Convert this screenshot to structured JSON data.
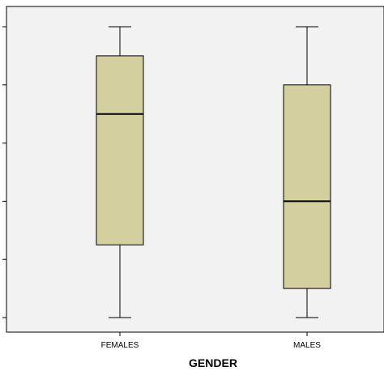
{
  "chart_data": {
    "type": "boxplot",
    "xlabel": "GENDER",
    "ylabel": "",
    "title": "",
    "categories": [
      "FEMALES",
      "MALES"
    ],
    "boxes": [
      {
        "min": 0,
        "q1": 25,
        "median": 70,
        "q3": 90,
        "max": 100
      },
      {
        "min": 0,
        "q1": 10,
        "median": 40,
        "q3": 80,
        "max": 100
      }
    ],
    "ylim": [
      0,
      100
    ],
    "y_tick_count": 6,
    "grid": false,
    "colors": {
      "box_fill": "#d4cf9f",
      "plot_background": "#f2f2f2",
      "stroke": "#000000"
    }
  }
}
